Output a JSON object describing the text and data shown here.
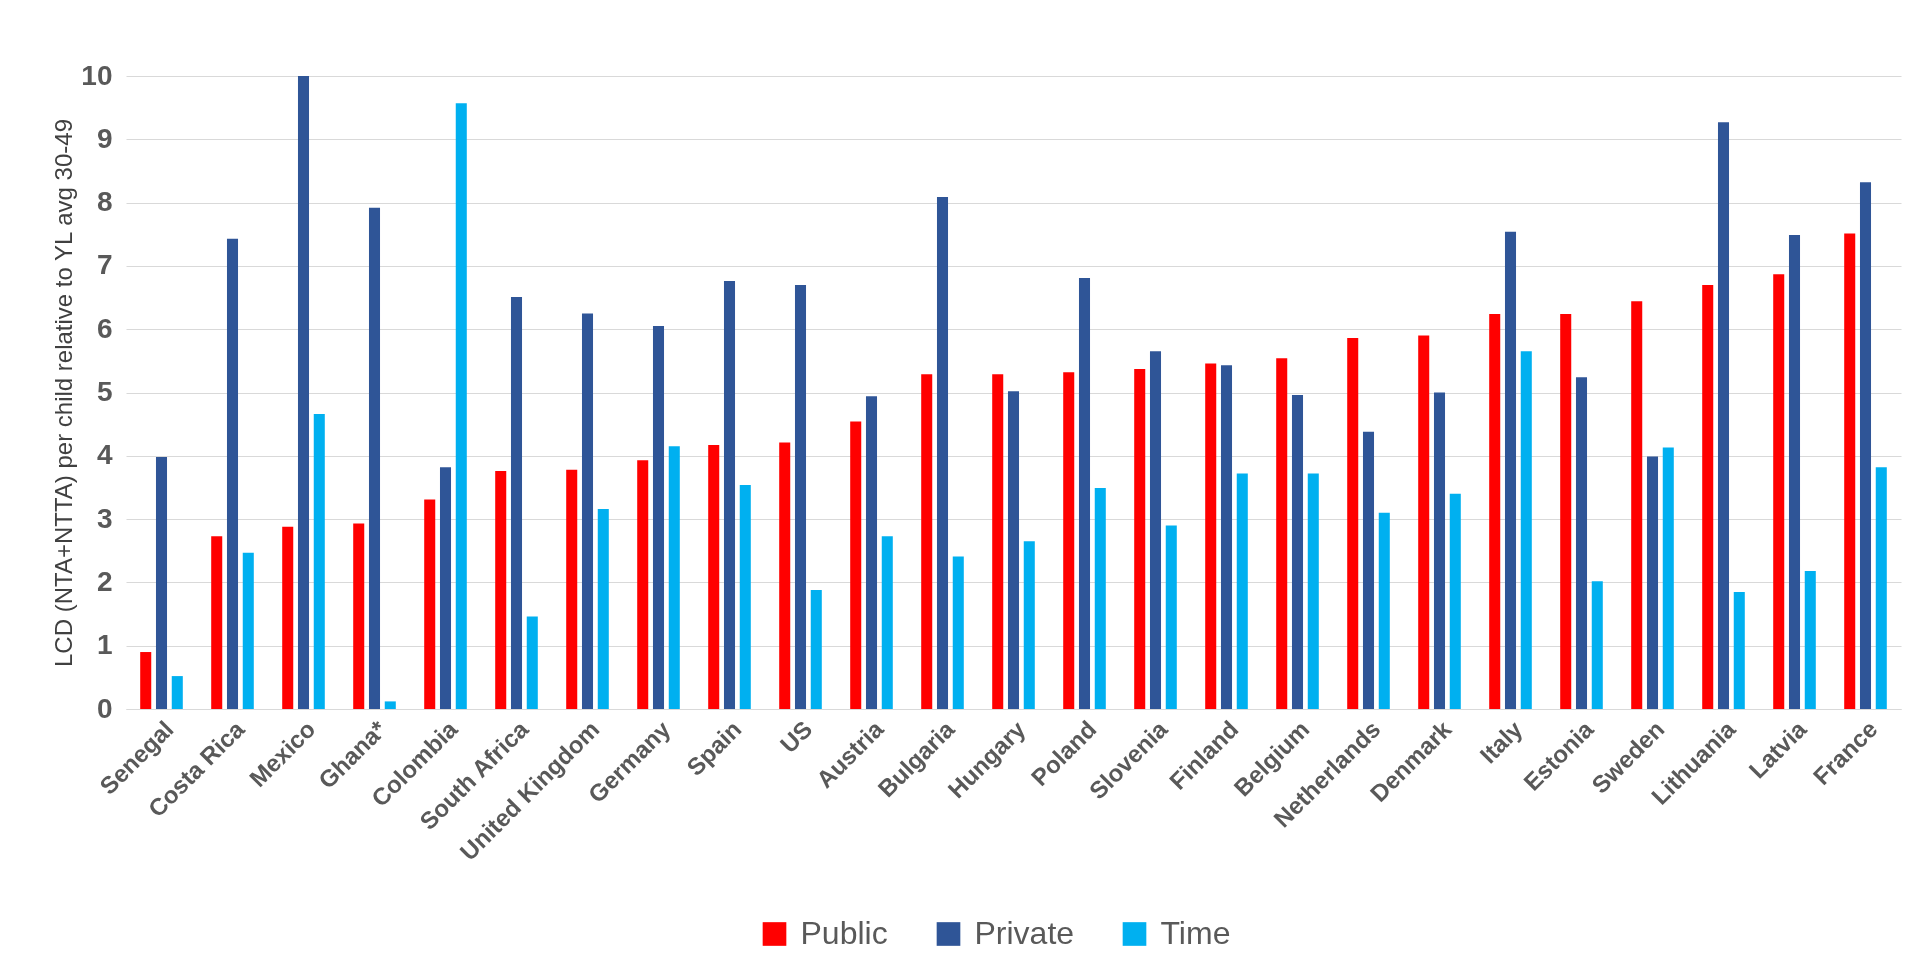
{
  "chart_data": {
    "type": "bar",
    "ylabel": "LCD (NTA+NTTA)  per child relative to YL avg 30-49",
    "categories": [
      "Senegal",
      "Costa Rica",
      "Mexico",
      "Ghana*",
      "Colombia",
      "South Africa",
      "United Kingdom",
      "Germany",
      "Spain",
      "US",
      "Austria",
      "Bulgaria",
      "Hungary",
      "Poland",
      "Slovenia",
      "Finland",
      "Belgium",
      "Netherlands",
      "Denmark",
      "Italy",
      "Estonia",
      "Sweden",
      "Lithuania",
      "Latvia",
      "France"
    ],
    "series": [
      {
        "name": "Public",
        "color": "#ff0000",
        "values": [
          0.9,
          2.73,
          2.88,
          2.93,
          3.31,
          3.76,
          3.78,
          3.93,
          4.17,
          4.21,
          4.54,
          5.29,
          5.29,
          5.32,
          5.37,
          5.46,
          5.54,
          5.86,
          5.9,
          6.24,
          6.24,
          6.44,
          6.7,
          6.87,
          7.51
        ]
      },
      {
        "name": "Private",
        "color": "#2f5597",
        "values": [
          3.98,
          7.43,
          10.0,
          7.92,
          3.82,
          6.51,
          6.25,
          6.05,
          6.76,
          6.7,
          4.94,
          8.09,
          5.02,
          6.81,
          5.65,
          5.43,
          4.96,
          4.38,
          5.0,
          7.54,
          5.24,
          3.99,
          9.27,
          7.49,
          8.32
        ]
      },
      {
        "name": "Time",
        "color": "#00b0f0",
        "values": [
          0.52,
          2.47,
          4.66,
          0.12,
          9.57,
          1.46,
          3.16,
          4.15,
          3.54,
          1.88,
          2.73,
          2.41,
          2.65,
          3.49,
          2.9,
          3.72,
          3.72,
          3.1,
          3.4,
          5.65,
          2.02,
          4.13,
          1.85,
          2.18,
          3.82
        ]
      }
    ],
    "ylim": [
      0,
      10
    ],
    "yticks": [
      0,
      1,
      2,
      3,
      4,
      5,
      6,
      7,
      8,
      9,
      10
    ],
    "grid": "y",
    "legend": "bottom"
  }
}
